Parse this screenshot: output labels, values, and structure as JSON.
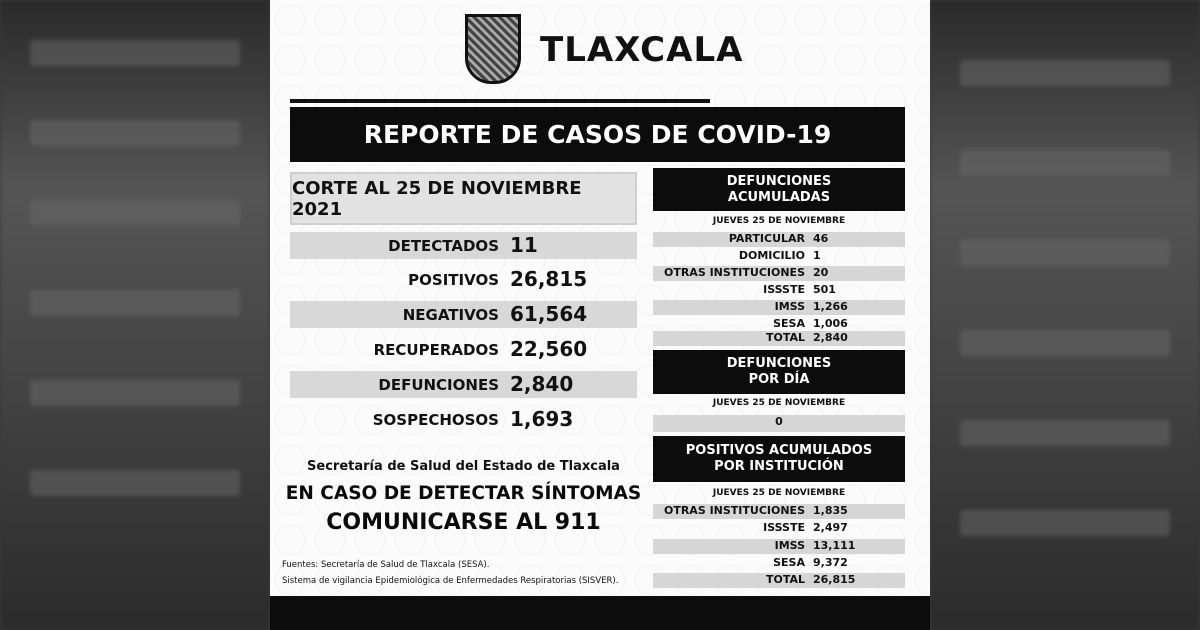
{
  "brand": "TLAXCALA",
  "title": "REPORTE DE CASOS DE COVID-19",
  "corte": "CORTE AL 25 DE NOVIEMBRE 2021",
  "summary": [
    {
      "label": "DETECTADOS",
      "value": "11"
    },
    {
      "label": "POSITIVOS",
      "value": "26,815"
    },
    {
      "label": "NEGATIVOS",
      "value": "61,564"
    },
    {
      "label": "RECUPERADOS",
      "value": "22,560"
    },
    {
      "label": "DEFUNCIONES",
      "value": "2,840"
    },
    {
      "label": "SOSPECHOSOS",
      "value": "1,693"
    }
  ],
  "secretaria": "Secretaría de Salud del Estado de Tlaxcala",
  "cta_line1": "EN CASO DE DETECTAR SÍNTOMAS",
  "cta_line2": "COMUNICARSE AL 911",
  "sources": [
    "Fuentes:  Secretaría de Salud de Tlaxcala (SESA).",
    "Sistema de vigilancia Epidemiológica de Enfermedades Respiratorias (SISVER)."
  ],
  "def_acum": {
    "title1": "DEFUNCIONES",
    "title2": "ACUMULADAS",
    "date": "JUEVES 25 DE NOVIEMBRE",
    "rows": [
      {
        "label": "PARTICULAR",
        "value": "46"
      },
      {
        "label": "DOMICILIO",
        "value": "1"
      },
      {
        "label": "OTRAS INSTITUCIONES",
        "value": "20"
      },
      {
        "label": "ISSSTE",
        "value": "501"
      },
      {
        "label": "IMSS",
        "value": "1,266"
      },
      {
        "label": "SESA",
        "value": "1,006"
      },
      {
        "label": "TOTAL",
        "value": "2,840"
      }
    ]
  },
  "def_dia": {
    "title1": "DEFUNCIONES",
    "title2": "POR DÍA",
    "date": "JUEVES 25 DE NOVIEMBRE",
    "value": "0"
  },
  "pos_inst": {
    "title1": "POSITIVOS ACUMULADOS",
    "title2": "POR INSTITUCIÓN",
    "date": "JUEVES 25 DE NOVIEMBRE",
    "rows": [
      {
        "label": "OTRAS INSTITUCIONES",
        "value": "1,835"
      },
      {
        "label": "ISSSTE",
        "value": "2,497"
      },
      {
        "label": "IMSS",
        "value": "13,111"
      },
      {
        "label": "SESA",
        "value": "9,372"
      },
      {
        "label": "TOTAL",
        "value": "26,815"
      }
    ]
  }
}
